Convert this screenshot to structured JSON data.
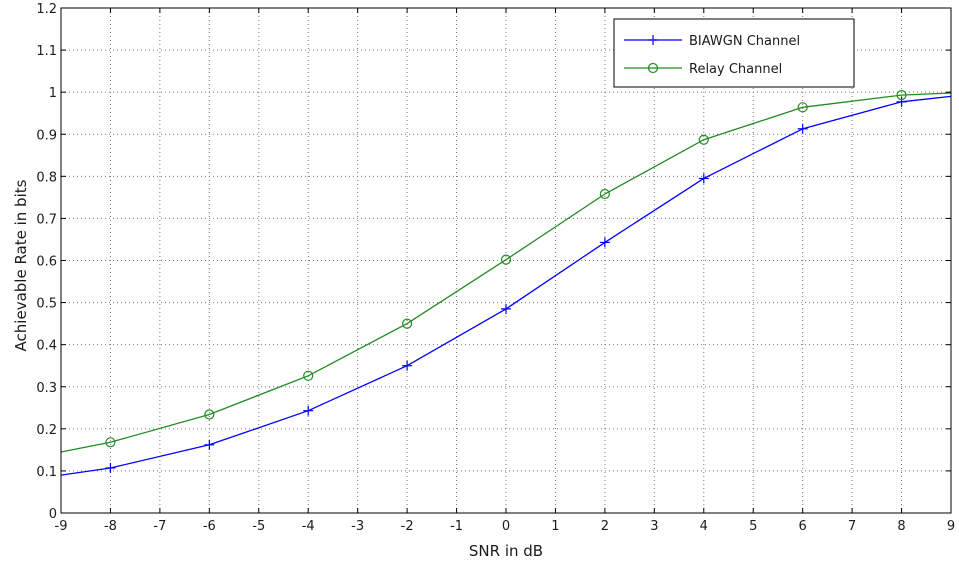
{
  "chart_data": {
    "type": "line",
    "title": "",
    "xlabel": "SNR in dB",
    "ylabel": "Achievable Rate in bits",
    "xlim": [
      -9,
      9
    ],
    "ylim": [
      0,
      1.2
    ],
    "xticks": [
      -9,
      -8,
      -7,
      -6,
      -5,
      -4,
      -3,
      -2,
      -1,
      0,
      1,
      2,
      3,
      4,
      5,
      6,
      7,
      8,
      9
    ],
    "yticks": [
      "0",
      "0.1",
      "0.2",
      "0.3",
      "0.4",
      "0.5",
      "0.6",
      "0.7",
      "0.8",
      "0.9",
      "1",
      "1.1",
      "1.2"
    ],
    "grid": true,
    "legend_position": "top-right",
    "series": [
      {
        "name": "BIAWGN Channel",
        "color": "#0000ff",
        "marker": "plus",
        "x": [
          -9,
          -8,
          -6,
          -4,
          -2,
          0,
          2,
          4,
          6,
          8,
          9
        ],
        "y": [
          0.09,
          0.107,
          0.162,
          0.243,
          0.35,
          0.485,
          0.643,
          0.795,
          0.913,
          0.977,
          0.99
        ],
        "marker_x": [
          -8,
          -6,
          -4,
          -2,
          0,
          2,
          4,
          6,
          8
        ]
      },
      {
        "name": "Relay Channel",
        "color": "#228b22",
        "marker": "circle",
        "x": [
          -9,
          -8,
          -6,
          -4,
          -2,
          0,
          2,
          4,
          6,
          8,
          9
        ],
        "y": [
          0.145,
          0.168,
          0.234,
          0.326,
          0.45,
          0.602,
          0.758,
          0.887,
          0.964,
          0.993,
          0.998
        ],
        "marker_x": [
          -8,
          -6,
          -4,
          -2,
          0,
          2,
          4,
          6,
          8
        ]
      }
    ]
  }
}
